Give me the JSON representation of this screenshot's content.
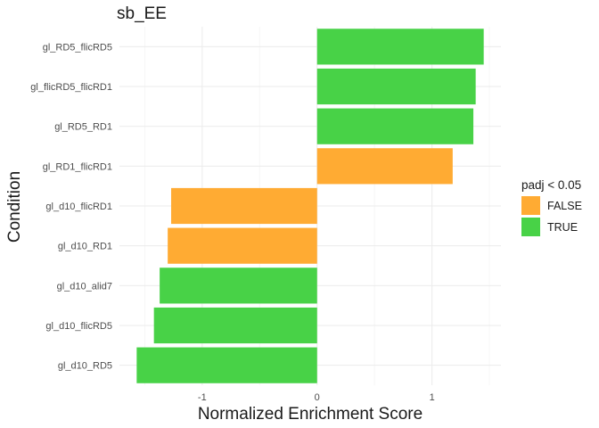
{
  "chart_data": {
    "type": "bar",
    "orientation": "horizontal",
    "title": "sb_EE",
    "xlabel": "Normalized Enrichment Score",
    "ylabel": "Condition",
    "categories": [
      "gl_RD5_flicRD5",
      "gl_flicRD5_flicRD1",
      "gl_RD5_RD1",
      "gl_RD1_flicRD1",
      "gl_d10_flicRD1",
      "gl_d10_RD1",
      "gl_d10_alid7",
      "gl_d10_flicRD5",
      "gl_d10_RD5"
    ],
    "values": [
      1.45,
      1.38,
      1.36,
      1.18,
      -1.27,
      -1.3,
      -1.37,
      -1.42,
      -1.57
    ],
    "padj_sig": [
      "TRUE",
      "TRUE",
      "TRUE",
      "FALSE",
      "FALSE",
      "FALSE",
      "TRUE",
      "TRUE",
      "TRUE"
    ],
    "xlim": [
      -1.72,
      1.6
    ],
    "xticks": [
      -1,
      0,
      1
    ],
    "xtick_labels": [
      "-1",
      "0",
      "1"
    ],
    "legend": {
      "title": "padj < 0.05",
      "position": "right",
      "entries": [
        {
          "label": "FALSE",
          "color": "#FFAB33"
        },
        {
          "label": "TRUE",
          "color": "#48D247"
        }
      ]
    },
    "grid": true
  }
}
